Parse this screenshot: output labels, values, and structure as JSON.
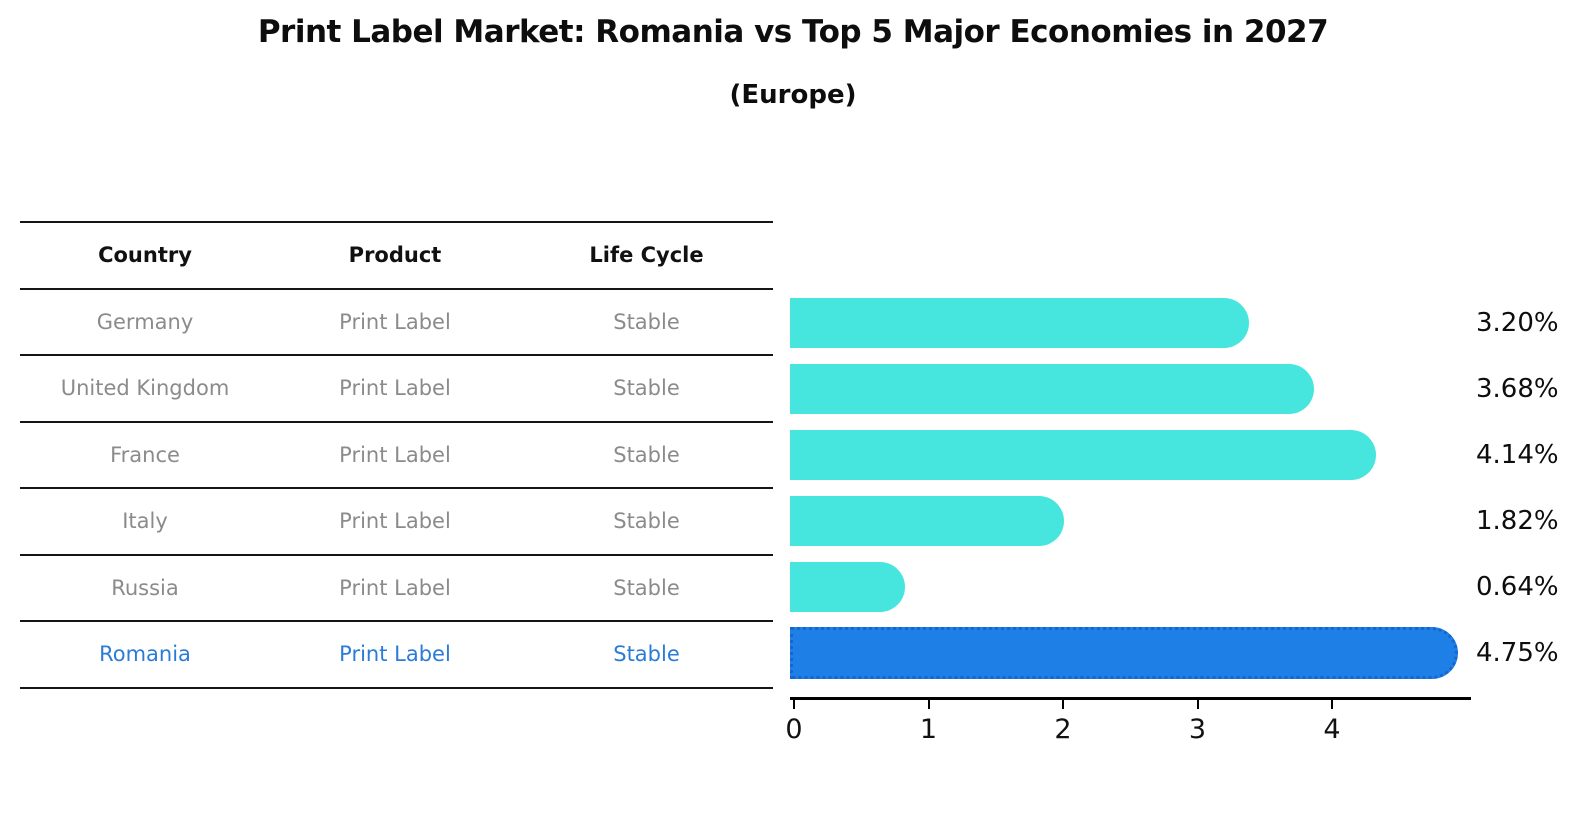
{
  "title": "Print Label Market: Romania vs Top 5 Major Economies in 2027",
  "subtitle": "(Europe)",
  "table": {
    "headers": [
      "Country",
      "Product",
      "Life Cycle"
    ],
    "rows": [
      {
        "country": "Germany",
        "product": "Print Label",
        "life_cycle": "Stable",
        "highlight": false
      },
      {
        "country": "United Kingdom",
        "product": "Print Label",
        "life_cycle": "Stable",
        "highlight": false
      },
      {
        "country": "France",
        "product": "Print Label",
        "life_cycle": "Stable",
        "highlight": false
      },
      {
        "country": "Italy",
        "product": "Print Label",
        "life_cycle": "Stable",
        "highlight": false
      },
      {
        "country": "Russia",
        "product": "Print Label",
        "life_cycle": "Stable",
        "highlight": false
      },
      {
        "country": "Romania",
        "product": "Print Label",
        "life_cycle": "Stable",
        "highlight": true
      }
    ]
  },
  "chart_data": {
    "type": "bar",
    "orientation": "horizontal",
    "categories": [
      "Germany",
      "United Kingdom",
      "France",
      "Italy",
      "Russia",
      "Romania"
    ],
    "values": [
      3.2,
      3.68,
      4.14,
      1.82,
      0.64,
      4.75
    ],
    "value_labels": [
      "3.20%",
      "3.68%",
      "4.14%",
      "1.82%",
      "0.64%",
      "4.75%"
    ],
    "xlim": [
      0,
      5
    ],
    "xticks": [
      0,
      1,
      2,
      3,
      4
    ],
    "grid": false,
    "legend": "none",
    "highlight_index": 5,
    "bar_color": "#46E5DE",
    "highlight_color": "#1E7FE6",
    "highlight_border_color": "#1565D2"
  },
  "colors": {
    "text_primary": "#0d0d0d",
    "text_muted": "#8b8b8b",
    "highlight_text": "#2B7CD6",
    "table_line": "#151515"
  }
}
